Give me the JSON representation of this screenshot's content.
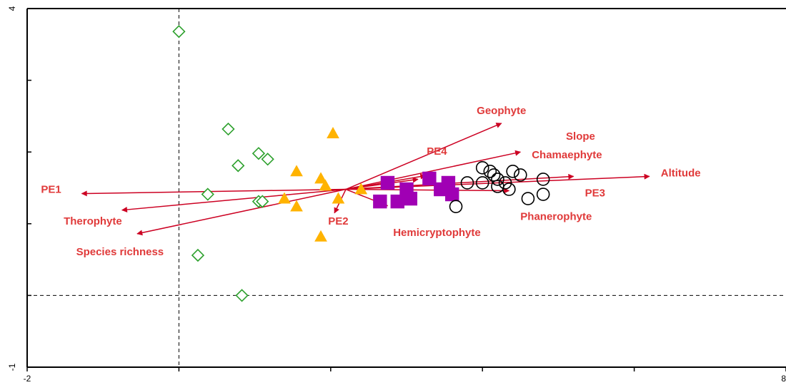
{
  "chart_data": {
    "type": "scatter",
    "title": "",
    "xlabel": "",
    "ylabel": "",
    "xlim": [
      -2,
      8
    ],
    "ylim": [
      -1,
      4
    ],
    "x_tick_labels": [
      {
        "value": -2,
        "label": "-2"
      },
      {
        "value": 8,
        "label": "8"
      }
    ],
    "y_tick_labels": [
      {
        "value": 4,
        "label": "4"
      },
      {
        "value": -1,
        "label": "-1"
      }
    ],
    "x_ticks": [
      -2,
      0,
      2,
      4,
      6,
      8
    ],
    "y_ticks": [
      -1,
      0,
      1,
      2,
      3,
      4
    ],
    "zero_lines": {
      "x": 0,
      "y": 0
    },
    "origin": [
      2.2,
      1.48
    ],
    "arrow_color": "#cc0022",
    "label_color": "#e03a3a",
    "vectors": [
      {
        "label": "PE1",
        "end": [
          -1.28,
          1.42
        ],
        "label_pos": [
          -1.55,
          1.47
        ],
        "anchor": "end"
      },
      {
        "label": "Therophyte",
        "end": [
          -0.75,
          1.19
        ],
        "label_pos": [
          -0.75,
          1.03
        ],
        "anchor": "end"
      },
      {
        "label": "Species richness",
        "end": [
          -0.55,
          0.86
        ],
        "label_pos": [
          -0.2,
          0.6
        ],
        "anchor": "end"
      },
      {
        "label": "PE2",
        "end": [
          2.05,
          1.15
        ],
        "label_pos": [
          2.1,
          1.03
        ],
        "anchor": "middle"
      },
      {
        "label": "Geophyte",
        "end": [
          4.25,
          2.4
        ],
        "label_pos": [
          4.25,
          2.57
        ],
        "anchor": "middle"
      },
      {
        "label": "Slope",
        "end": [
          4.5,
          2.0
        ],
        "label_pos": [
          5.1,
          2.21
        ],
        "anchor": "start"
      },
      {
        "label": "PE4",
        "end": [
          3.25,
          1.67
        ],
        "label_pos": [
          3.4,
          2.0
        ],
        "anchor": "middle"
      },
      {
        "label": "Chamaephyte",
        "end": [
          3.15,
          1.62
        ],
        "label_pos": [
          4.65,
          1.95
        ],
        "anchor": "start"
      },
      {
        "label": "Altitude",
        "end": [
          6.2,
          1.66
        ],
        "label_pos": [
          6.35,
          1.7
        ],
        "anchor": "start"
      },
      {
        "label": "PE3",
        "end": [
          5.2,
          1.66
        ],
        "label_pos": [
          5.35,
          1.42
        ],
        "anchor": "start"
      },
      {
        "label": "Phanerophyte",
        "end": [
          4.35,
          1.46
        ],
        "label_pos": [
          4.5,
          1.09
        ],
        "anchor": "start"
      },
      {
        "label": "Hemicryptophyte",
        "end": [
          2.75,
          1.25
        ],
        "label_pos": [
          3.4,
          0.87
        ],
        "anchor": "middle"
      }
    ],
    "series": [
      {
        "marker": "diamond-open",
        "color": "#2ca02c",
        "points": [
          [
            0.0,
            3.68
          ],
          [
            0.65,
            2.32
          ],
          [
            0.78,
            1.81
          ],
          [
            1.05,
            1.98
          ],
          [
            1.17,
            1.9
          ],
          [
            0.38,
            1.41
          ],
          [
            1.05,
            1.31
          ],
          [
            1.1,
            1.31
          ],
          [
            0.25,
            0.56
          ],
          [
            0.83,
            0.0
          ]
        ]
      },
      {
        "marker": "triangle-filled",
        "color": "#ffb300",
        "points": [
          [
            2.03,
            2.26
          ],
          [
            1.55,
            1.73
          ],
          [
            1.87,
            1.63
          ],
          [
            1.93,
            1.53
          ],
          [
            1.39,
            1.35
          ],
          [
            1.55,
            1.24
          ],
          [
            2.1,
            1.35
          ],
          [
            2.4,
            1.48
          ],
          [
            1.87,
            0.82
          ]
        ]
      },
      {
        "marker": "square-filled",
        "color": "#a000b4",
        "points": [
          [
            2.75,
            1.57
          ],
          [
            3.0,
            1.48
          ],
          [
            3.3,
            1.63
          ],
          [
            3.55,
            1.57
          ],
          [
            3.6,
            1.41
          ],
          [
            3.45,
            1.48
          ],
          [
            2.65,
            1.31
          ],
          [
            2.88,
            1.31
          ],
          [
            3.05,
            1.35
          ]
        ]
      },
      {
        "marker": "circle-open",
        "color": "#000000",
        "points": [
          [
            3.8,
            1.57
          ],
          [
            4.0,
            1.78
          ],
          [
            4.0,
            1.57
          ],
          [
            4.15,
            1.68
          ],
          [
            4.1,
            1.73
          ],
          [
            4.2,
            1.62
          ],
          [
            4.3,
            1.57
          ],
          [
            4.35,
            1.48
          ],
          [
            4.2,
            1.52
          ],
          [
            4.4,
            1.73
          ],
          [
            4.5,
            1.68
          ],
          [
            4.8,
            1.62
          ],
          [
            4.6,
            1.35
          ],
          [
            4.8,
            1.41
          ],
          [
            3.65,
            1.24
          ]
        ]
      }
    ]
  }
}
